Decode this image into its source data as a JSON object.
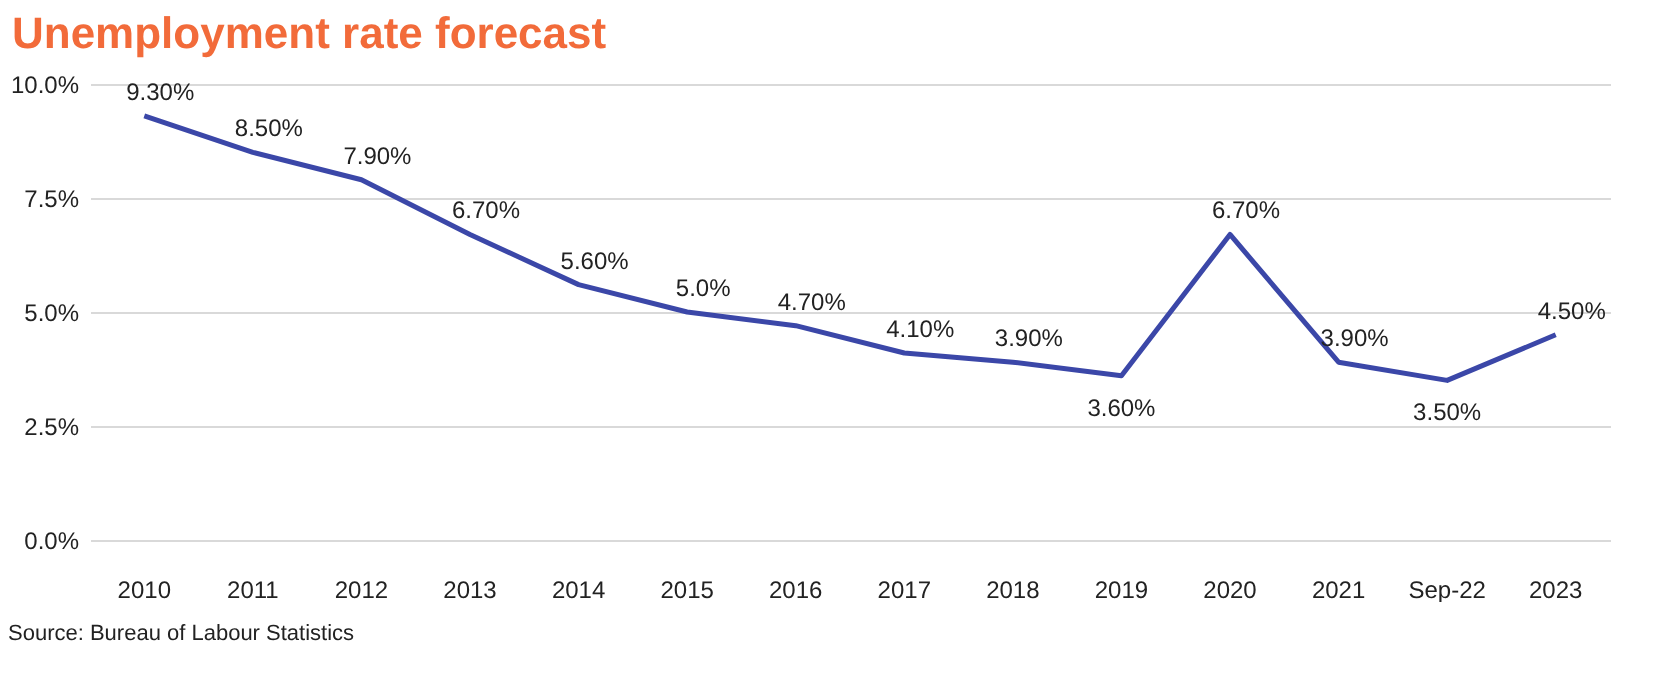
{
  "chart_data": {
    "type": "line",
    "title": "Unemployment rate forecast",
    "annotations": [
      "Source: Bureau of Labour Statistics"
    ],
    "categories": [
      "2010",
      "2011",
      "2012",
      "2013",
      "2014",
      "2015",
      "2016",
      "2017",
      "2018",
      "2019",
      "2020",
      "2021",
      "Sep-22",
      "2023"
    ],
    "series": [
      {
        "color": "#3b47a8",
        "values": [
          9.3,
          8.5,
          7.9,
          6.7,
          5.6,
          5.0,
          4.7,
          4.1,
          3.9,
          3.6,
          6.7,
          3.9,
          3.5,
          4.5
        ],
        "value_labels": [
          "9.30%",
          "8.50%",
          "7.90%",
          "6.70%",
          "5.60%",
          "5.0%",
          "4.70%",
          "4.10%",
          "3.90%",
          "3.60%",
          "6.70%",
          "3.90%",
          "3.50%",
          "4.50%"
        ]
      }
    ],
    "ylim": [
      0,
      10
    ],
    "yticks": [
      {
        "value": 0,
        "label": "0.0%"
      },
      {
        "value": 2.5,
        "label": "2.5%"
      },
      {
        "value": 5,
        "label": "5.0%"
      },
      {
        "value": 7.5,
        "label": "7.5%"
      },
      {
        "value": 10,
        "label": "10.0%"
      }
    ],
    "grid": "y",
    "marker": "none",
    "line_style": "solid"
  }
}
